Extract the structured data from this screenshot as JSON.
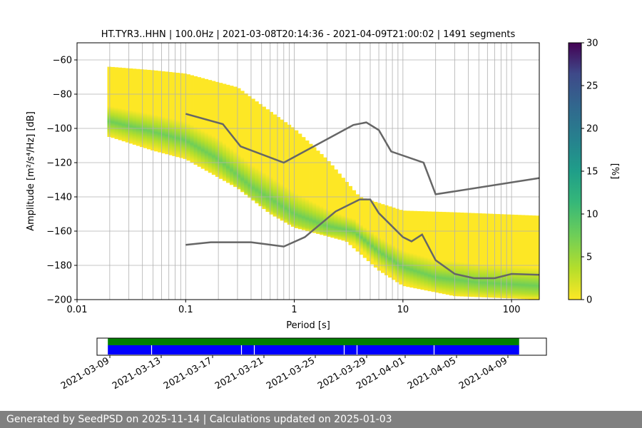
{
  "title": "HT.TYR3..HHN | 100.0Hz | 2021-03-08T20:14:36 - 2021-04-09T21:00:02 | 1491 segments",
  "footer": "Generated by SeedPSD on 2025-11-14 | Calculations updated on 2025-01-03",
  "colors": {
    "grid": "#b0b0b0",
    "model_line": "#666666",
    "availability_top": "#008000",
    "availability_main": "#0000ff",
    "footer_bg": "#808080"
  },
  "chart_data": [
    {
      "type": "heatmap",
      "title": "HT.TYR3..HHN | 100.0Hz | 2021-03-08T20:14:36 - 2021-04-09T21:00:02 | 1491 segments",
      "xlabel": "Period [s]",
      "ylabel": "Amplitude [m²/s⁴/Hz] [dB]",
      "x_scale": "log",
      "xlim": [
        0.01,
        180
      ],
      "ylim": [
        -200,
        -50
      ],
      "x_ticks": [
        {
          "v": 0.01,
          "label": "0.01"
        },
        {
          "v": 0.1,
          "label": "0.1"
        },
        {
          "v": 1,
          "label": "1"
        },
        {
          "v": 10,
          "label": "10"
        },
        {
          "v": 100,
          "label": "100"
        }
      ],
      "y_ticks": [
        {
          "v": -60,
          "label": "−60"
        },
        {
          "v": -80,
          "label": "−80"
        },
        {
          "v": -100,
          "label": "−100"
        },
        {
          "v": -120,
          "label": "−120"
        },
        {
          "v": -140,
          "label": "−140"
        },
        {
          "v": -160,
          "label": "−160"
        },
        {
          "v": -180,
          "label": "−180"
        },
        {
          "v": -200,
          "label": "−200"
        }
      ],
      "grid": true,
      "colorbar": {
        "label": "[%]",
        "range": [
          0,
          30
        ],
        "ticks": [
          {
            "v": 0,
            "label": "0"
          },
          {
            "v": 5,
            "label": "5"
          },
          {
            "v": 10,
            "label": "10"
          },
          {
            "v": 15,
            "label": "15"
          },
          {
            "v": 20,
            "label": "20"
          },
          {
            "v": 25,
            "label": "25"
          },
          {
            "v": 30,
            "label": "30"
          }
        ],
        "colormap": "viridis"
      },
      "psd_distribution": {
        "period_range": [
          0.019,
          180
        ],
        "mode": [
          [
            0.02,
            -96
          ],
          [
            0.05,
            -102
          ],
          [
            0.1,
            -107
          ],
          [
            0.2,
            -118
          ],
          [
            0.4,
            -134
          ],
          [
            1.0,
            -150
          ],
          [
            2.0,
            -157
          ],
          [
            3.5,
            -160
          ],
          [
            6.0,
            -172
          ],
          [
            10,
            -181
          ],
          [
            20,
            -187
          ],
          [
            50,
            -190
          ],
          [
            180,
            -192
          ]
        ],
        "upper_edge": [
          [
            0.02,
            -64
          ],
          [
            0.05,
            -66
          ],
          [
            0.1,
            -68
          ],
          [
            0.3,
            -76
          ],
          [
            0.6,
            -90
          ],
          [
            1.0,
            -100
          ],
          [
            2.0,
            -118
          ],
          [
            4.0,
            -140
          ],
          [
            10,
            -148
          ],
          [
            30,
            -149
          ],
          [
            180,
            -151
          ]
        ],
        "lower_edge": [
          [
            0.02,
            -105
          ],
          [
            0.05,
            -113
          ],
          [
            0.1,
            -118
          ],
          [
            0.3,
            -135
          ],
          [
            0.6,
            -150
          ],
          [
            1.0,
            -158
          ],
          [
            3.0,
            -166
          ],
          [
            6.0,
            -183
          ],
          [
            10,
            -192
          ],
          [
            30,
            -198
          ],
          [
            180,
            -200
          ]
        ]
      },
      "series": [
        {
          "x": [
            0.1,
            0.22,
            0.32,
            0.8,
            3.5,
            4.6,
            6.0,
            7.8,
            15.5,
            20,
            180
          ],
          "y": [
            -91.5,
            -97.5,
            -110.5,
            -120,
            -98,
            -96.5,
            -101,
            -113.5,
            -120,
            -138.5,
            -129
          ]
        },
        {
          "x": [
            0.1,
            0.17,
            0.4,
            0.8,
            1.25,
            2.4,
            4.0,
            5.0,
            6.0,
            10,
            12,
            15,
            20,
            30,
            45,
            70,
            100,
            180
          ],
          "y": [
            -168,
            -166.5,
            -166.5,
            -169,
            -163.5,
            -148.5,
            -141.5,
            -141.5,
            -149.5,
            -163.5,
            -166,
            -162,
            -177,
            -185,
            -187.5,
            -187.5,
            -185,
            -185.5
          ]
        }
      ]
    },
    {
      "type": "bar",
      "subtype": "availability-timeline",
      "x_range": [
        "2021-03-08",
        "2021-04-12"
      ],
      "x_ticks": [
        "2021-03-09",
        "2021-03-13",
        "2021-03-17",
        "2021-03-21",
        "2021-03-25",
        "2021-03-29",
        "2021-04-01",
        "2021-04-05",
        "2021-04-09"
      ],
      "data_span": [
        "2021-03-08T20:14:36",
        "2021-04-09T21:00:02"
      ],
      "gaps": [
        "2021-03-12",
        "2021-03-19",
        "2021-03-20",
        "2021-03-27",
        "2021-03-28",
        "2021-04-03"
      ]
    }
  ]
}
